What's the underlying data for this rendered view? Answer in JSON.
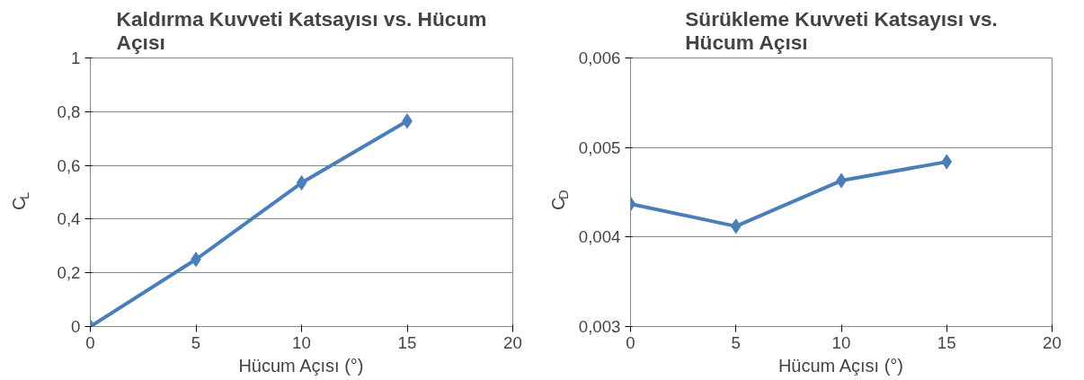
{
  "chart_data": [
    {
      "type": "line",
      "title": "Kaldırma Kuvveti Katsayısı vs. Hücum Açısı",
      "xlabel": "Hücum Açısı (°)",
      "ylabel": "C$_{L}$",
      "x": [
        0,
        5,
        10,
        15
      ],
      "series": [
        {
          "color": "#4a7ebb",
          "values": [
            0,
            0.25,
            0.535,
            0.765
          ]
        }
      ],
      "xlim": [
        0,
        20
      ],
      "xticks": [
        0,
        5,
        10,
        15,
        20
      ],
      "ylim": [
        0,
        1
      ],
      "yticks": [
        0,
        {
          "value": 0.2,
          "label": "0,2"
        },
        {
          "value": 0.4,
          "label": "0,4"
        },
        {
          "value": 0.6,
          "label": "0,6"
        },
        {
          "value": 0.8,
          "label": "0,8"
        },
        1
      ],
      "grid": "y",
      "marker": "diamond",
      "line_style": "solid"
    },
    {
      "type": "line",
      "title": "Sürükleme Kuvveti Katsayısı vs. Hücum Açısı",
      "xlabel": "Hücum Açısı (°)",
      "ylabel": "C$_{D}$",
      "x": [
        0,
        5,
        10,
        15
      ],
      "series": [
        {
          "color": "#4a7ebb",
          "values": [
            0.00437,
            0.00412,
            0.00463,
            0.00484
          ]
        }
      ],
      "xlim": [
        0,
        20
      ],
      "xticks": [
        0,
        5,
        10,
        15,
        20
      ],
      "ylim": [
        0.003,
        0.006
      ],
      "yticks": [
        {
          "value": 0.003,
          "label": "0,003"
        },
        {
          "value": 0.004,
          "label": "0,004"
        },
        {
          "value": 0.005,
          "label": "0,005"
        },
        {
          "value": 0.006,
          "label": "0,006"
        }
      ],
      "grid": "y",
      "marker": "diamond",
      "line_style": "solid"
    }
  ]
}
